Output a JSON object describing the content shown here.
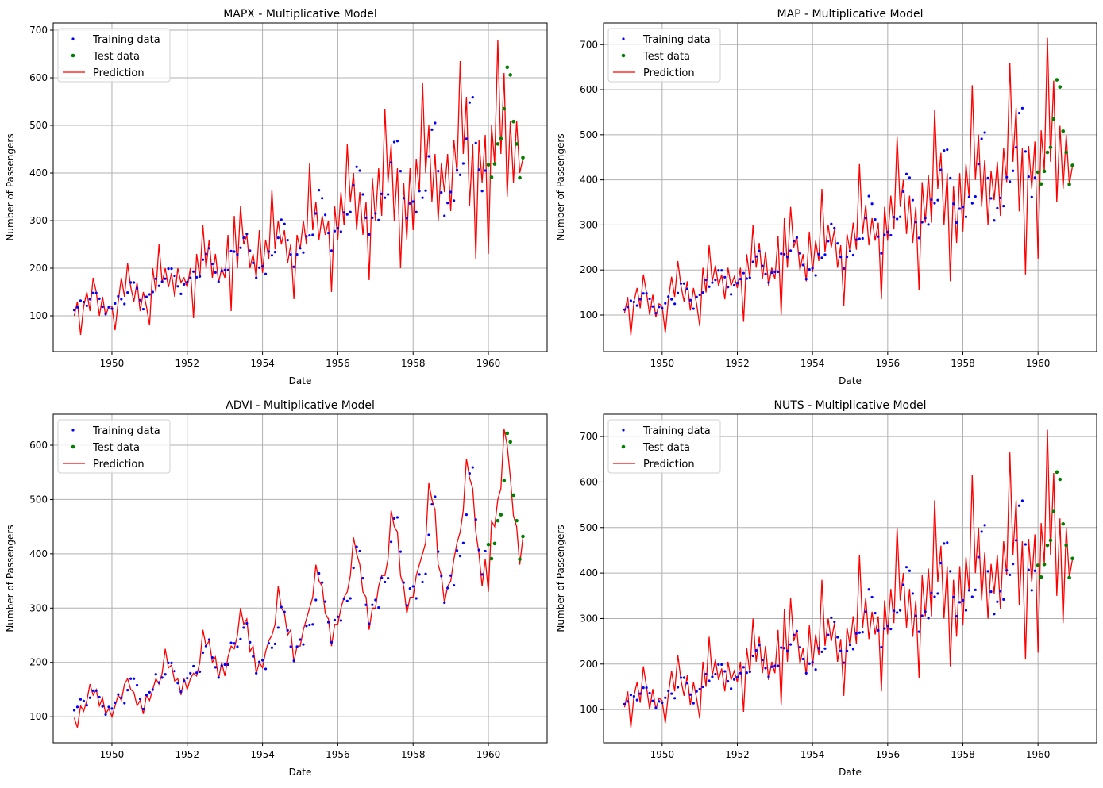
{
  "chart_data": [
    {
      "type": "line",
      "title": "MAPX - Multiplicative Model",
      "xlabel": "Date",
      "ylabel": "Number of Passengers",
      "xlim": [
        1948.44,
        1961.56
      ],
      "ylim": [
        25,
        715
      ],
      "xticks": [
        "1950",
        "1952",
        "1954",
        "1956",
        "1958",
        "1960"
      ],
      "yticks": [
        100,
        200,
        300,
        400,
        500,
        600,
        700
      ],
      "grid": true,
      "legend": {
        "placement": "upper-left",
        "entries": [
          "Training data",
          "Test data",
          "Prediction"
        ]
      },
      "prediction": {
        "start": "1949-01",
        "freq": "monthly",
        "values": [
          100,
          130,
          60,
          120,
          150,
          110,
          180,
          150,
          100,
          140,
          100,
          120,
          120,
          70,
          130,
          180,
          140,
          210,
          160,
          130,
          170,
          110,
          150,
          120,
          80,
          200,
          150,
          250,
          170,
          200,
          160,
          190,
          140,
          200,
          170,
          180,
          160,
          200,
          95,
          230,
          180,
          290,
          200,
          260,
          180,
          230,
          170,
          200,
          180,
          270,
          110,
          310,
          200,
          330,
          250,
          270,
          200,
          230,
          180,
          280,
          190,
          260,
          220,
          365,
          240,
          300,
          250,
          280,
          210,
          250,
          135,
          270,
          240,
          300,
          250,
          420,
          280,
          340,
          260,
          310,
          270,
          300,
          150,
          330,
          260,
          360,
          290,
          460,
          340,
          400,
          280,
          360,
          270,
          340,
          175,
          390,
          300,
          410,
          310,
          535,
          380,
          460,
          300,
          410,
          200,
          380,
          260,
          410,
          280,
          430,
          360,
          590,
          400,
          500,
          340,
          440,
          300,
          420,
          360,
          440,
          320,
          470,
          400,
          635,
          440,
          560,
          330,
          460,
          220,
          470,
          380,
          480,
          230,
          500,
          420,
          680,
          440,
          610,
          350,
          510,
          380,
          510,
          400,
          430
        ]
      }
    },
    {
      "type": "line",
      "title": "MAP - Multiplicative Model",
      "xlabel": "Date",
      "ylabel": "Number of Passengers",
      "xlim": [
        1948.44,
        1961.56
      ],
      "ylim": [
        19,
        748
      ],
      "xticks": [
        "1950",
        "1952",
        "1954",
        "1956",
        "1958",
        "1960"
      ],
      "yticks": [
        100,
        200,
        300,
        400,
        500,
        600,
        700
      ],
      "grid": true,
      "legend": {
        "placement": "upper-left",
        "entries": [
          "Training data",
          "Test data",
          "Prediction"
        ]
      },
      "prediction": {
        "start": "1949-01",
        "freq": "monthly",
        "values": [
          105,
          140,
          55,
          130,
          160,
          115,
          190,
          150,
          100,
          145,
          95,
          125,
          120,
          60,
          135,
          185,
          140,
          220,
          165,
          130,
          175,
          110,
          160,
          125,
          75,
          205,
          150,
          255,
          175,
          210,
          165,
          190,
          135,
          205,
          165,
          185,
          160,
          205,
          85,
          235,
          180,
          300,
          205,
          260,
          180,
          240,
          165,
          205,
          180,
          275,
          100,
          315,
          205,
          340,
          250,
          275,
          200,
          235,
          175,
          285,
          195,
          265,
          220,
          380,
          240,
          300,
          250,
          290,
          205,
          255,
          120,
          280,
          240,
          305,
          245,
          435,
          280,
          345,
          255,
          315,
          265,
          305,
          135,
          340,
          265,
          365,
          290,
          495,
          340,
          400,
          280,
          365,
          260,
          340,
          155,
          395,
          305,
          410,
          305,
          555,
          380,
          460,
          300,
          415,
          175,
          385,
          260,
          415,
          285,
          435,
          360,
          610,
          400,
          500,
          340,
          445,
          300,
          420,
          355,
          440,
          320,
          470,
          395,
          660,
          440,
          560,
          330,
          470,
          190,
          475,
          380,
          485,
          225,
          510,
          420,
          715,
          440,
          620,
          350,
          520,
          380,
          500,
          390,
          430
        ]
      }
    },
    {
      "type": "line",
      "title": "ADVI - Multiplicative Model",
      "xlabel": "Date",
      "ylabel": "Number of Passengers",
      "xlim": [
        1948.44,
        1961.56
      ],
      "ylim": [
        52,
        657
      ],
      "xticks": [
        "1950",
        "1952",
        "1954",
        "1956",
        "1958",
        "1960"
      ],
      "yticks": [
        100,
        200,
        300,
        400,
        500,
        600
      ],
      "grid": true,
      "legend": {
        "placement": "upper-left",
        "entries": [
          "Training data",
          "Test data",
          "Prediction"
        ]
      },
      "prediction": {
        "start": "1949-01",
        "freq": "monthly",
        "values": [
          98,
          80,
          120,
          110,
          130,
          160,
          140,
          150,
          120,
          135,
          105,
          115,
          100,
          120,
          140,
          130,
          160,
          170,
          150,
          145,
          120,
          130,
          105,
          140,
          130,
          150,
          170,
          160,
          180,
          225,
          190,
          195,
          165,
          170,
          140,
          170,
          150,
          170,
          180,
          175,
          200,
          260,
          230,
          240,
          200,
          210,
          170,
          200,
          175,
          210,
          230,
          225,
          250,
          300,
          270,
          280,
          220,
          230,
          180,
          200,
          190,
          220,
          240,
          250,
          270,
          340,
          300,
          290,
          250,
          260,
          200,
          230,
          230,
          260,
          280,
          300,
          320,
          380,
          350,
          340,
          290,
          280,
          230,
          270,
          270,
          300,
          320,
          330,
          360,
          430,
          400,
          380,
          330,
          320,
          260,
          300,
          300,
          340,
          360,
          360,
          390,
          480,
          450,
          440,
          360,
          340,
          290,
          320,
          320,
          360,
          380,
          400,
          420,
          530,
          500,
          480,
          380,
          360,
          310,
          340,
          350,
          390,
          420,
          440,
          480,
          575,
          540,
          520,
          440,
          400,
          340,
          390,
          330,
          460,
          450,
          500,
          520,
          630,
          600,
          540,
          470,
          450,
          380,
          430
        ]
      }
    },
    {
      "type": "line",
      "title": "NUTS - Multiplicative Model",
      "xlabel": "Date",
      "ylabel": "Number of Passengers",
      "xlim": [
        1948.44,
        1961.56
      ],
      "ylim": [
        27,
        749
      ],
      "xticks": [
        "1950",
        "1952",
        "1954",
        "1956",
        "1958",
        "1960"
      ],
      "yticks": [
        100,
        200,
        300,
        400,
        500,
        600,
        700
      ],
      "grid": true,
      "legend": {
        "placement": "upper-left",
        "entries": [
          "Training data",
          "Test data",
          "Prediction"
        ]
      },
      "prediction": {
        "start": "1949-01",
        "freq": "monthly",
        "values": [
          105,
          140,
          60,
          130,
          160,
          115,
          195,
          150,
          100,
          145,
          100,
          125,
          120,
          70,
          135,
          185,
          140,
          220,
          165,
          130,
          175,
          110,
          160,
          125,
          80,
          205,
          150,
          260,
          175,
          210,
          165,
          190,
          140,
          205,
          165,
          185,
          160,
          205,
          95,
          235,
          180,
          300,
          205,
          260,
          180,
          240,
          165,
          205,
          180,
          275,
          110,
          320,
          205,
          345,
          250,
          275,
          200,
          235,
          175,
          285,
          195,
          265,
          220,
          385,
          240,
          300,
          250,
          290,
          205,
          255,
          130,
          280,
          240,
          305,
          245,
          440,
          280,
          345,
          255,
          315,
          265,
          305,
          140,
          340,
          265,
          365,
          290,
          500,
          340,
          400,
          280,
          365,
          260,
          340,
          170,
          395,
          305,
          410,
          305,
          560,
          380,
          460,
          300,
          415,
          195,
          385,
          260,
          415,
          285,
          435,
          360,
          615,
          400,
          500,
          340,
          445,
          300,
          420,
          355,
          440,
          320,
          470,
          395,
          665,
          440,
          560,
          330,
          470,
          210,
          475,
          380,
          485,
          225,
          510,
          420,
          715,
          440,
          620,
          350,
          520,
          290,
          500,
          390,
          430
        ]
      }
    }
  ],
  "observed": {
    "training": {
      "start": "1949-01",
      "freq": "monthly",
      "values": [
        112,
        118,
        132,
        129,
        121,
        135,
        148,
        148,
        136,
        119,
        104,
        118,
        115,
        126,
        141,
        135,
        125,
        149,
        170,
        170,
        158,
        133,
        114,
        140,
        145,
        150,
        178,
        163,
        172,
        178,
        199,
        199,
        184,
        162,
        146,
        166,
        171,
        180,
        193,
        181,
        183,
        218,
        230,
        242,
        209,
        191,
        172,
        194,
        196,
        196,
        236,
        235,
        229,
        243,
        264,
        272,
        237,
        211,
        180,
        201,
        204,
        188,
        235,
        227,
        234,
        264,
        302,
        293,
        259,
        229,
        203,
        229,
        242,
        233,
        267,
        269,
        270,
        315,
        364,
        347,
        312,
        274,
        237,
        278,
        284,
        277,
        317,
        313,
        318,
        374,
        413,
        405,
        355,
        306,
        271,
        306,
        315,
        301,
        356,
        348,
        355,
        422,
        465,
        467,
        404,
        347,
        305,
        336,
        340,
        318,
        362,
        348,
        363,
        435,
        491,
        505,
        404,
        359,
        310,
        337,
        360,
        342,
        406,
        396,
        420,
        472,
        548,
        559,
        463,
        407,
        362,
        405
      ]
    },
    "test": {
      "start": "1960-01",
      "freq": "monthly",
      "values": [
        417,
        391,
        419,
        461,
        472,
        535,
        622,
        606,
        508,
        461,
        390,
        432
      ]
    }
  },
  "colors": {
    "training": "#0000ff",
    "test": "#008000",
    "prediction": "#ff0000",
    "grid": "#b0b0b0"
  }
}
